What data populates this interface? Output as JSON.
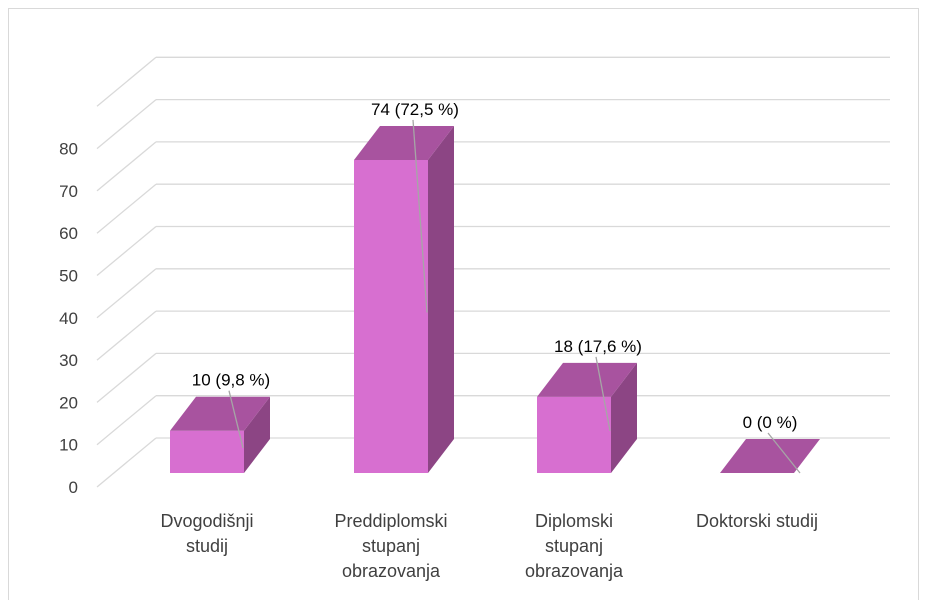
{
  "chart_data": {
    "type": "bar",
    "style": "3d-column",
    "categories": [
      [
        "Dvogodišnji",
        "studij"
      ],
      [
        "Preddiplomski",
        "stupanj",
        "obrazovanja"
      ],
      [
        "Diplomski",
        "stupanj",
        "obrazovanja"
      ],
      [
        "Doktorski studij"
      ]
    ],
    "values": [
      10,
      74,
      18,
      0
    ],
    "data_labels": [
      "10 (9,8 %)",
      "74 (72,5 %)",
      "18 (17,6 %)",
      "0 (0 %)"
    ],
    "ylim": [
      0,
      80
    ],
    "yticks": [
      0,
      10,
      20,
      30,
      40,
      50,
      60,
      70,
      80
    ],
    "grid": true,
    "legend": "none",
    "colors": {
      "front": "#d76fd0",
      "top": "#a8539f",
      "side": "#8c4584",
      "grid": "#d9d9d9",
      "leader": "#a6a6a6"
    }
  }
}
